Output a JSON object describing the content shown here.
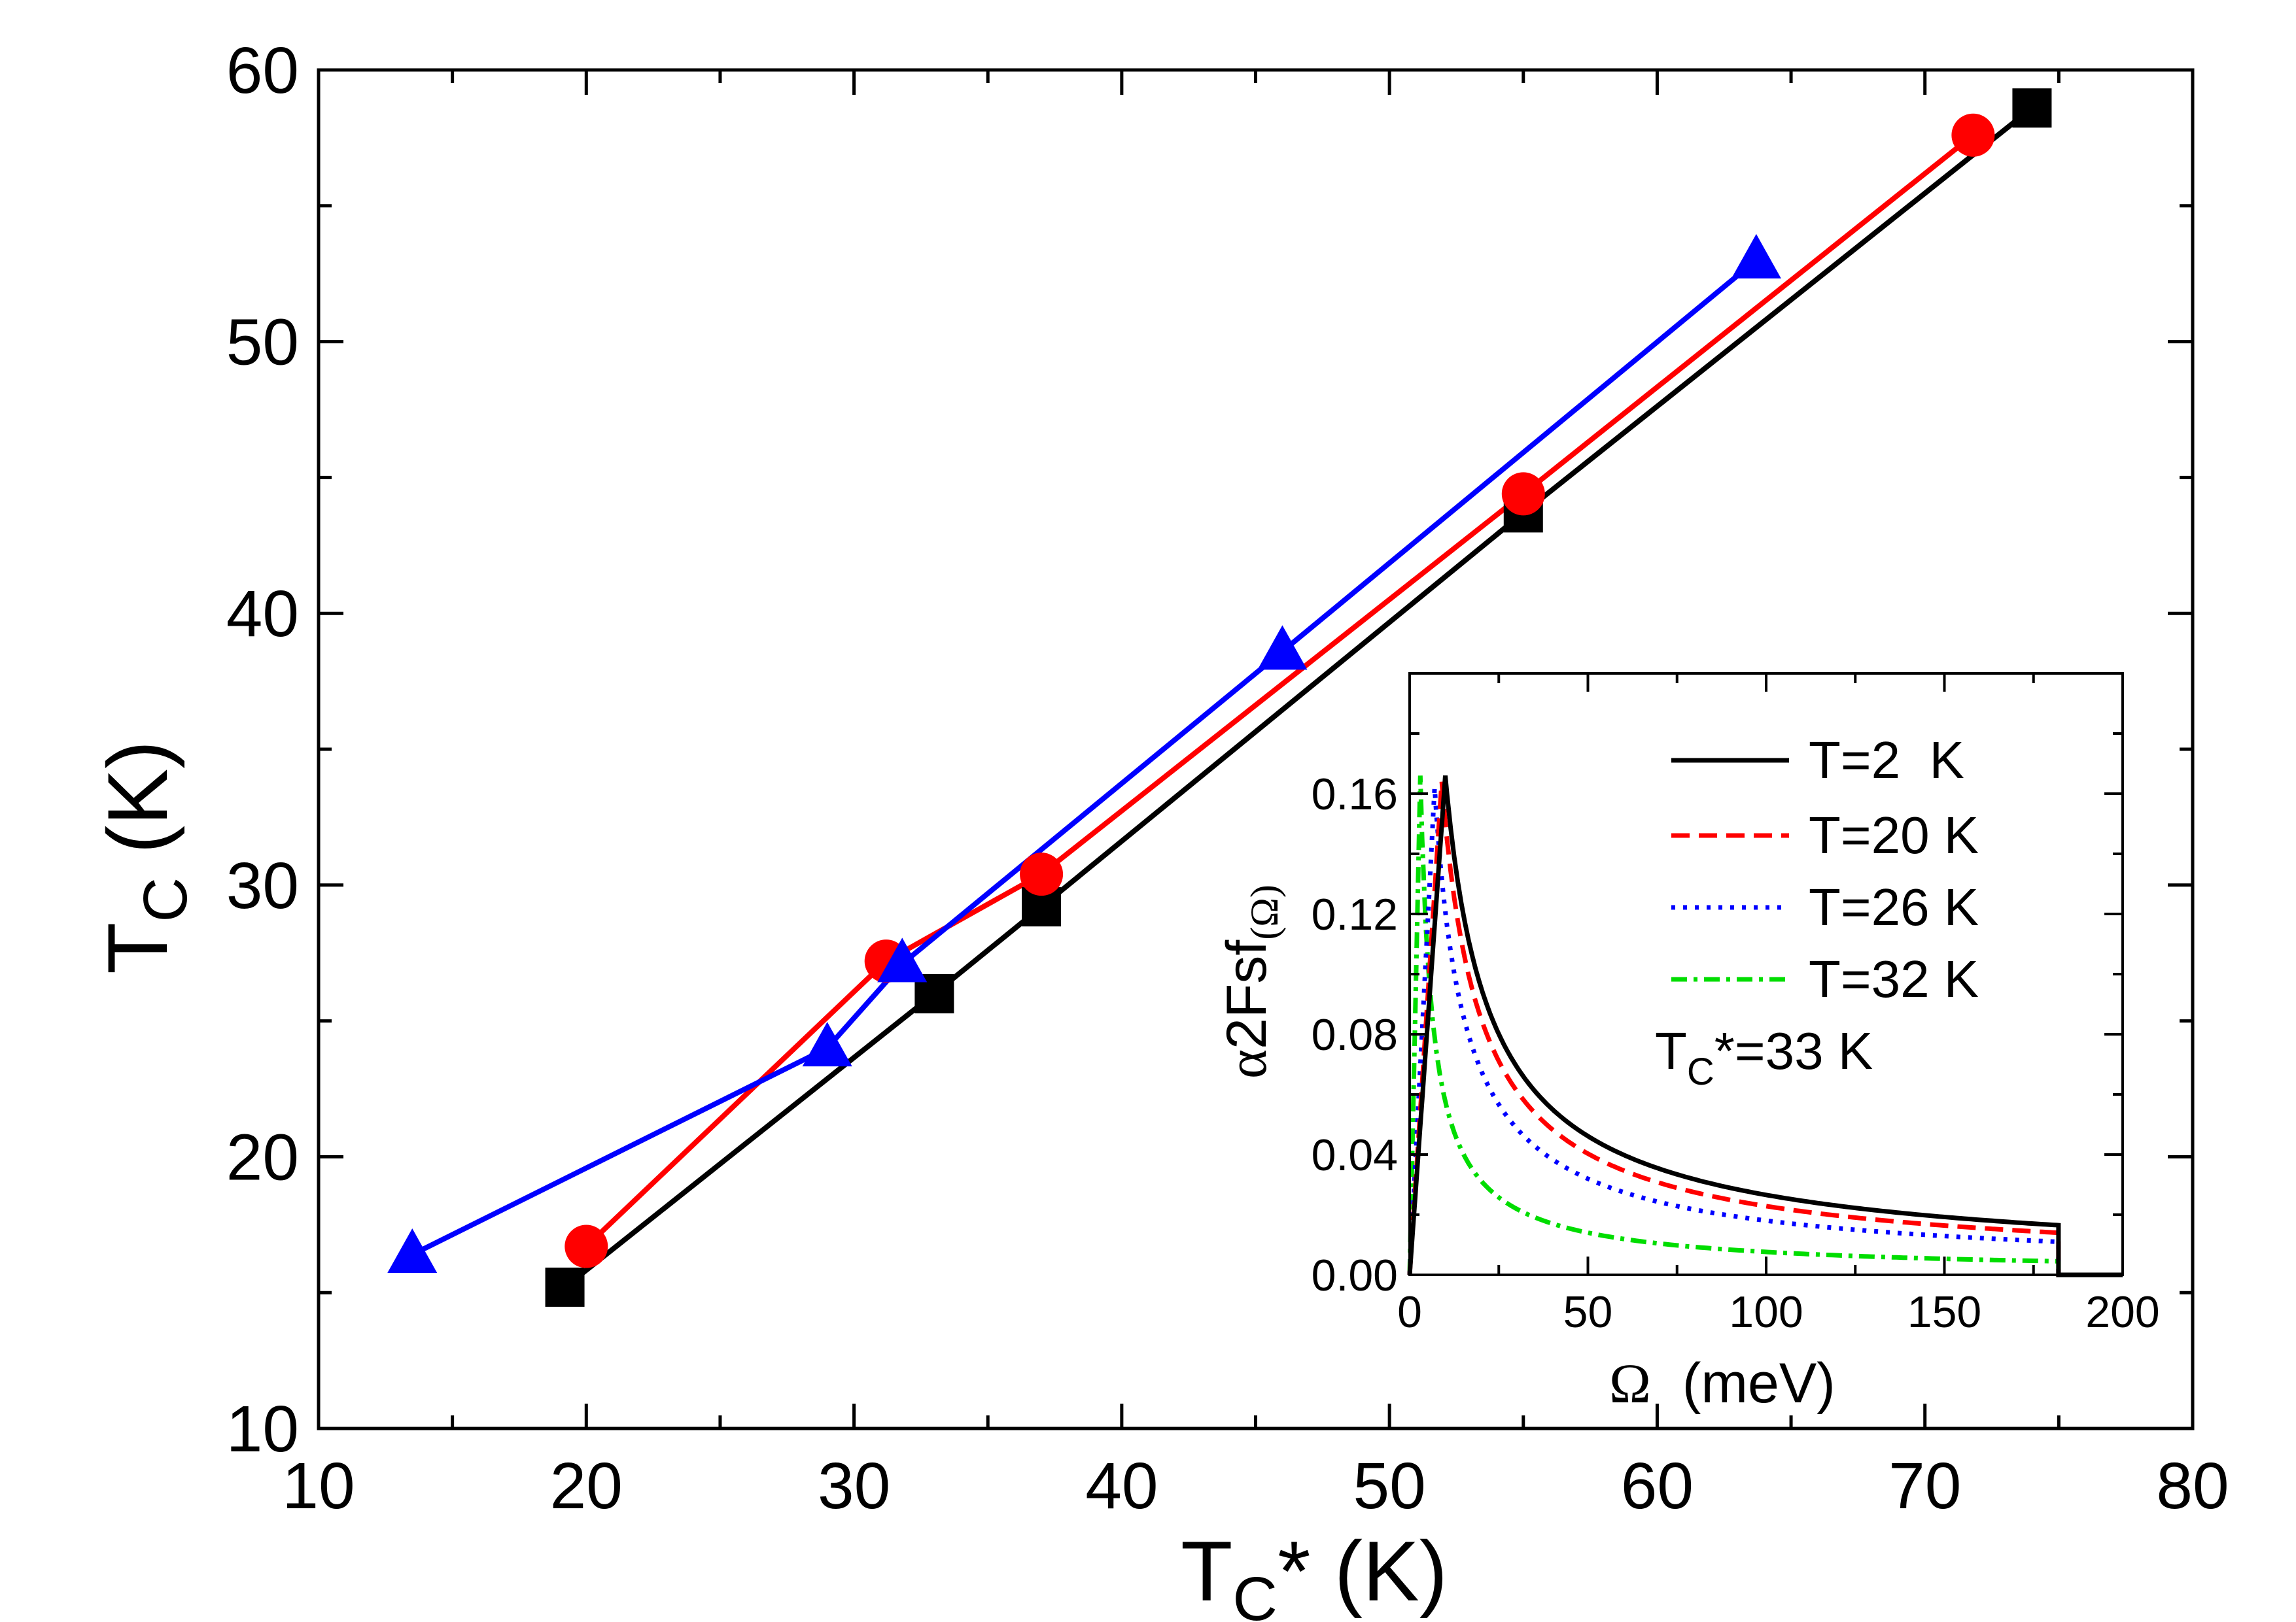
{
  "chart_data": [
    {
      "type": "line",
      "role": "main",
      "xlim": [
        10,
        80
      ],
      "ylim": [
        10,
        60
      ],
      "x_ticks": [
        10,
        20,
        30,
        40,
        50,
        60,
        70,
        80
      ],
      "y_ticks": [
        10,
        20,
        30,
        40,
        50,
        60
      ],
      "xlabel": {
        "main": "T",
        "sub": "C",
        "suffix": "* (K)"
      },
      "ylabel": {
        "main": "T",
        "sub": "C",
        "suffix": " (K)"
      },
      "series": [
        {
          "name": "squares",
          "marker": "square",
          "color": "#000000",
          "x": [
            19.2,
            33.0,
            37.0,
            55.0,
            74.0
          ],
          "y": [
            15.2,
            26.0,
            29.2,
            43.7,
            58.6
          ]
        },
        {
          "name": "circles",
          "marker": "circle",
          "color": "#ff0000",
          "x": [
            20.0,
            31.2,
            37.0,
            55.0,
            71.8
          ],
          "y": [
            16.7,
            27.2,
            30.4,
            44.4,
            57.6
          ]
        },
        {
          "name": "triangles",
          "marker": "triangle",
          "color": "#0000ff",
          "x": [
            13.5,
            29.0,
            31.8,
            46.0,
            63.7
          ],
          "y": [
            16.4,
            24.0,
            27.1,
            38.6,
            53.0
          ]
        }
      ]
    },
    {
      "type": "line",
      "role": "inset",
      "title": "",
      "xlim": [
        0,
        200
      ],
      "ylim": [
        0,
        0.2
      ],
      "x_ticks": [
        0,
        50,
        100,
        150,
        200
      ],
      "y_ticks": [
        0.0,
        0.04,
        0.08,
        0.12,
        0.16
      ],
      "y_tick_labels": [
        "0.00",
        "0.04",
        "0.08",
        "0.12",
        "0.16"
      ],
      "xlabel": {
        "greek": "Ω",
        "rest": "  (meV)"
      },
      "ylabel": {
        "greek1": "α",
        "mid": "2Fsf",
        "sub": "(Ω)"
      },
      "cutoff": 182,
      "series": [
        {
          "name": "T=2  K",
          "color": "#000000",
          "style": "solid",
          "peak_x": 10,
          "peak_y": 0.166
        },
        {
          "name": "T=20 K",
          "color": "#ff0000",
          "style": "dash",
          "peak_x": 9,
          "peak_y": 0.164
        },
        {
          "name": "T=26 K",
          "color": "#0000ff",
          "style": "dot",
          "peak_x": 7,
          "peak_y": 0.162
        },
        {
          "name": "T=32 K",
          "color": "#00dd00",
          "style": "dashdot",
          "peak_x": 3,
          "peak_y": 0.166
        }
      ],
      "legend": {
        "labels": [
          "T=2  K",
          "T=20 K",
          "T=26 K",
          "T=32 K"
        ],
        "note": {
          "main": "T",
          "sub": "C",
          "rest": "*=33 K"
        }
      }
    }
  ]
}
